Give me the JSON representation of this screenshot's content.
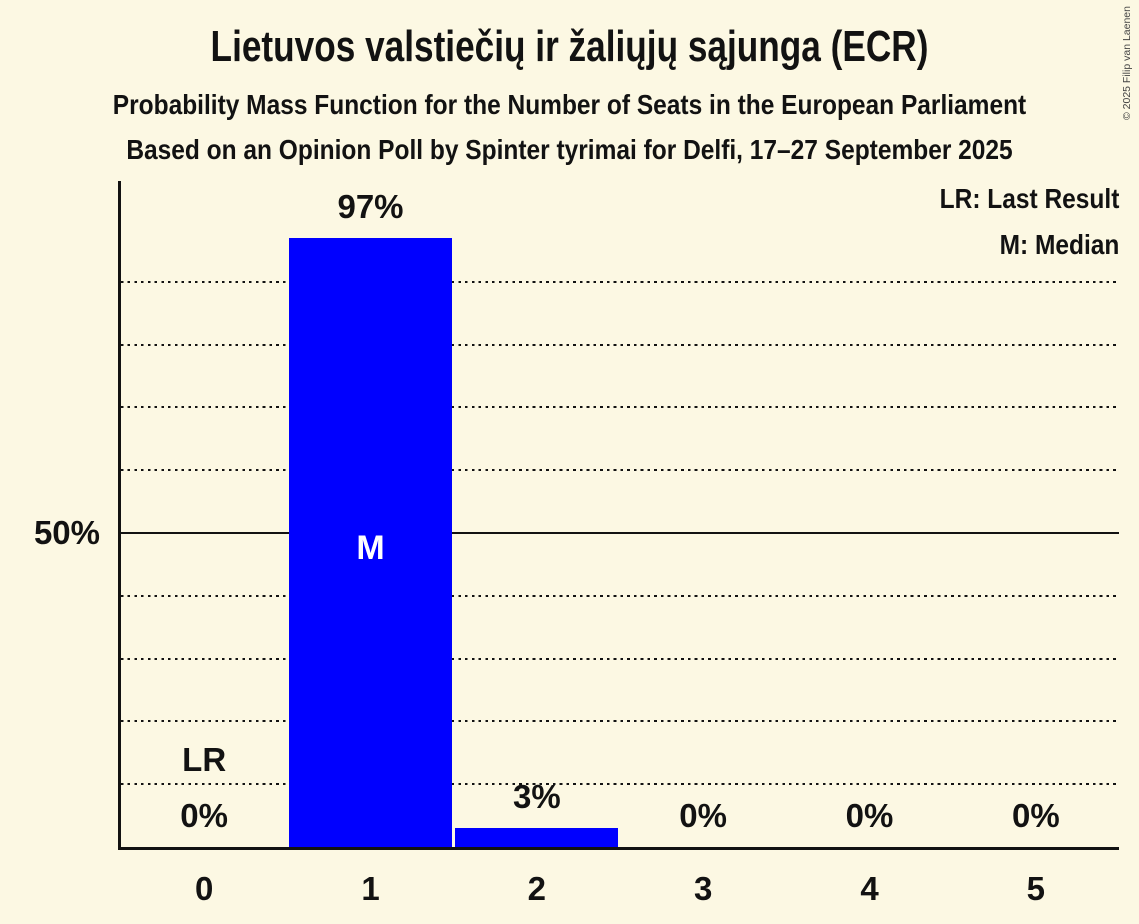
{
  "title": "Lietuvos valstiečių ir žaliųjų sąjunga (ECR)",
  "subtitle1": "Probability Mass Function for the Number of Seats in the European Parliament",
  "subtitle2": "Based on an Opinion Poll by Spinter tyrimai for Delfi, 17–27 September 2025",
  "copyright": "© 2025 Filip van Laenen",
  "legend": {
    "lr": "LR: Last Result",
    "m": "M: Median"
  },
  "y_axis": {
    "label_50": "50%"
  },
  "colors": {
    "background": "#fcf8e3",
    "bar": "#0000ff",
    "text": "#121212",
    "median_text": "#ffffff"
  },
  "chart_data": {
    "type": "bar",
    "title": "Lietuvos valstiečių ir žaliųjų sąjunga (ECR)",
    "xlabel": "",
    "ylabel": "",
    "categories": [
      "0",
      "1",
      "2",
      "3",
      "4",
      "5"
    ],
    "values": [
      0,
      97,
      3,
      0,
      0,
      0
    ],
    "value_labels": [
      "0%",
      "97%",
      "3%",
      "0%",
      "0%",
      "0%"
    ],
    "ylim": [
      0,
      100
    ],
    "y_unit": "percent",
    "gridline_step": 10,
    "solid_line_at": 50,
    "grid": "dotted-horizontal",
    "legend_position": "top-right",
    "bar_color": "#0000ff",
    "annotations": {
      "last_result_label": "LR",
      "last_result_category": "0",
      "median_label": "M",
      "median_category": "1"
    }
  }
}
